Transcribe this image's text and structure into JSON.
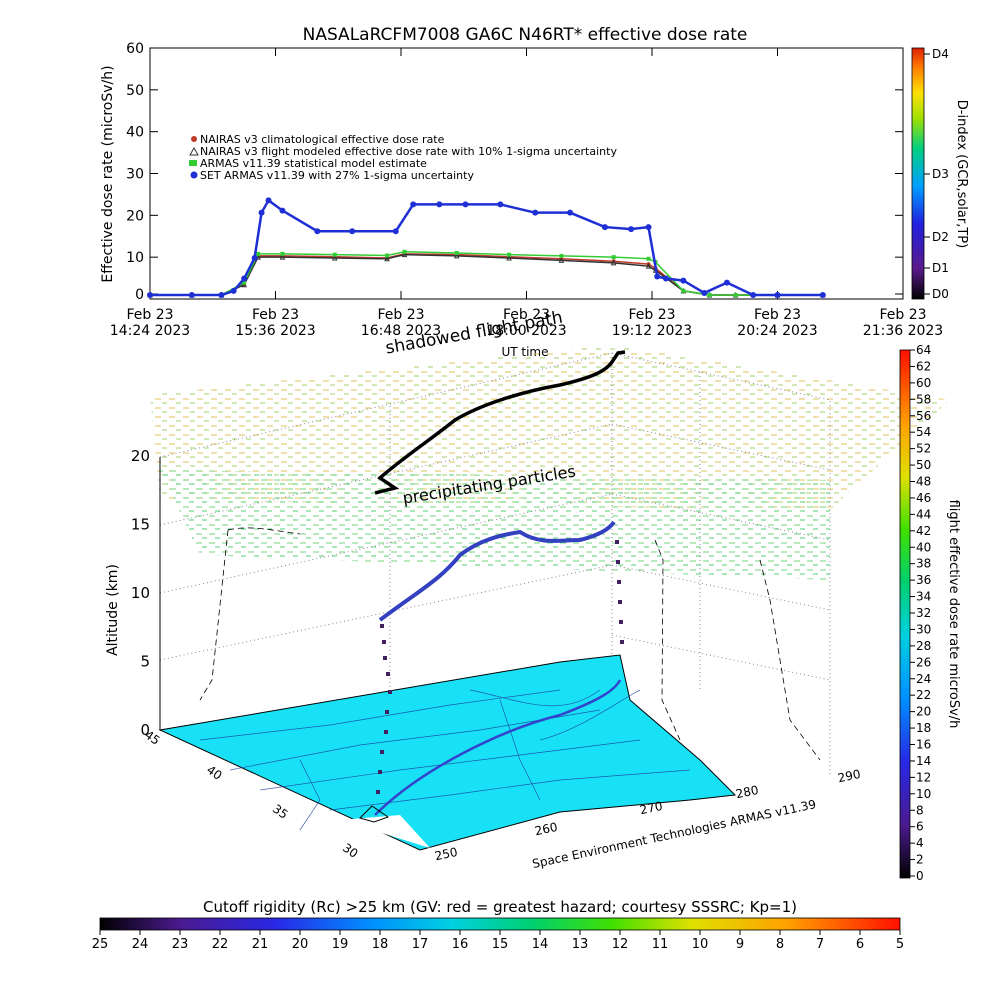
{
  "title": "NASALaRCFM7008  GA6C N46RT* effective dose rate",
  "top_chart": {
    "ylabel": "Effective dose rate (microSv/h)",
    "y_ticks": [
      "0",
      "10",
      "20",
      "30",
      "40",
      "50",
      "60"
    ],
    "x_ticks": [
      {
        "line1": "Feb 23",
        "line2": "14:24 2023"
      },
      {
        "line1": "Feb 23",
        "line2": "15:36 2023"
      },
      {
        "line1": "Feb 23",
        "line2": "16:48 2023"
      },
      {
        "line1": "Feb 23",
        "line2": "18:00 2023"
      },
      {
        "line1": "Feb 23",
        "line2": "19:12 2023"
      },
      {
        "line1": "Feb 23",
        "line2": "20:24 2023"
      },
      {
        "line1": "Feb 23",
        "line2": "21:36 2023"
      }
    ],
    "xlabel": "UT time",
    "legend": [
      {
        "label": "NAIRAS v3 climatological effective dose rate",
        "color": "#c0392b",
        "symbol": "circle"
      },
      {
        "label": "NAIRAS v3 flight modeled effective dose rate with 10% 1-sigma uncertainty",
        "color": "#333333",
        "symbol": "triangle"
      },
      {
        "label": "ARMAS v11.39 statistical model estimate",
        "color": "#33cc33",
        "symbol": "star"
      },
      {
        "label": "SET ARMAS v11.39 with 27% 1-sigma uncertainty",
        "color": "#1f2fd6",
        "symbol": "dot"
      }
    ],
    "dindex_label": "D-index (GCR,solar,TP)",
    "dindex_ticks": [
      "D4",
      "D3",
      "D2",
      "D1",
      "D0"
    ]
  },
  "scene": {
    "shadow_label": "shadowed flight path",
    "particles_label": "precipitating particles",
    "zlabel": "Altitude (km)",
    "z_ticks": [
      "0",
      "5",
      "10",
      "15",
      "20"
    ],
    "lat_ticks": [
      "45",
      "40",
      "35",
      "30"
    ],
    "lon_ticks": [
      "250",
      "260",
      "270",
      "280",
      "290"
    ],
    "credit": "Space Environment Technologies ARMAS v11.39"
  },
  "right_scale": {
    "label": "flight effective dose rate microSv/h",
    "ticks": [
      "0",
      "2",
      "4",
      "6",
      "8",
      "10",
      "12",
      "14",
      "16",
      "18",
      "20",
      "22",
      "24",
      "26",
      "28",
      "30",
      "32",
      "34",
      "36",
      "38",
      "40",
      "42",
      "44",
      "46",
      "48",
      "50",
      "52",
      "54",
      "56",
      "58",
      "60",
      "62",
      "64"
    ]
  },
  "bottom_scale": {
    "label": "Cutoff rigidity (Rc) >25 km (GV: red = greatest hazard; courtesy SSSRC; Kp=1)",
    "ticks": [
      "25",
      "24",
      "23",
      "22",
      "21",
      "20",
      "19",
      "18",
      "17",
      "16",
      "15",
      "14",
      "13",
      "12",
      "11",
      "10",
      "9",
      "8",
      "7",
      "6",
      "5"
    ]
  },
  "chart_data": {
    "type": "scatter",
    "title": "NASALaRCFM7008  GA6C N46RT* effective dose rate",
    "xlabel": "UT time",
    "ylabel": "Effective dose rate (microSv/h)",
    "xlim": [
      "2023-02-23 14:24",
      "2023-02-23 21:36"
    ],
    "ylim": [
      0,
      60
    ],
    "series": [
      {
        "name": "NAIRAS v3 climatological effective dose rate",
        "x": [
          "14:24",
          "14:48",
          "15:05",
          "15:18",
          "15:26",
          "15:40",
          "16:10",
          "16:40",
          "16:50",
          "17:20",
          "17:50",
          "18:20",
          "18:50",
          "19:10",
          "19:14",
          "19:30",
          "19:45",
          "20:00",
          "20:24",
          "20:50"
        ],
        "y": [
          0,
          0,
          0,
          2.5,
          9.5,
          9.5,
          9.3,
          9.0,
          10.0,
          9.8,
          9.3,
          8.8,
          8.2,
          7.5,
          6.5,
          1.0,
          0,
          0,
          0,
          0
        ]
      },
      {
        "name": "NAIRAS v3 flight modeled effective dose rate with 10% 1-sigma uncertainty",
        "x": [
          "14:24",
          "14:48",
          "15:05",
          "15:18",
          "15:26",
          "15:40",
          "16:10",
          "16:40",
          "16:50",
          "17:20",
          "17:50",
          "18:20",
          "18:50",
          "19:10",
          "19:14",
          "19:30",
          "19:45",
          "20:00",
          "20:24",
          "20:50"
        ],
        "y": [
          0,
          0,
          0,
          2.5,
          9.2,
          9.2,
          9.0,
          8.8,
          9.8,
          9.5,
          9.0,
          8.4,
          7.8,
          7.0,
          6.0,
          1.0,
          0,
          0,
          0,
          0
        ]
      },
      {
        "name": "ARMAS v11.39 statistical model estimate",
        "x": [
          "14:24",
          "14:48",
          "15:05",
          "15:18",
          "15:26",
          "15:40",
          "16:10",
          "16:40",
          "16:50",
          "17:20",
          "17:50",
          "18:20",
          "18:50",
          "19:10",
          "19:14",
          "19:30",
          "19:45",
          "20:00",
          "20:24",
          "20:50"
        ],
        "y": [
          0,
          0,
          0,
          3.0,
          10.0,
          10.0,
          9.8,
          9.6,
          10.5,
          10.2,
          9.8,
          9.5,
          9.2,
          8.8,
          8.0,
          1.0,
          0,
          0,
          0,
          0
        ]
      },
      {
        "name": "SET ARMAS v11.39 with 27% 1-sigma uncertainty",
        "x": [
          "14:24",
          "14:48",
          "15:05",
          "15:12",
          "15:18",
          "15:24",
          "15:28",
          "15:32",
          "15:40",
          "16:00",
          "16:20",
          "16:45",
          "16:55",
          "17:10",
          "17:25",
          "17:45",
          "18:05",
          "18:25",
          "18:45",
          "19:00",
          "19:10",
          "19:15",
          "19:20",
          "19:30",
          "19:42",
          "19:55",
          "20:10",
          "20:24",
          "20:50"
        ],
        "y": [
          0,
          0,
          0,
          1.0,
          4.0,
          9.0,
          20.0,
          23.0,
          20.5,
          15.5,
          15.5,
          15.5,
          22.0,
          22.0,
          22.0,
          22.0,
          20.0,
          20.0,
          16.5,
          16.0,
          16.5,
          4.5,
          4.0,
          3.5,
          0.5,
          3.0,
          0,
          0,
          0
        ]
      }
    ]
  }
}
